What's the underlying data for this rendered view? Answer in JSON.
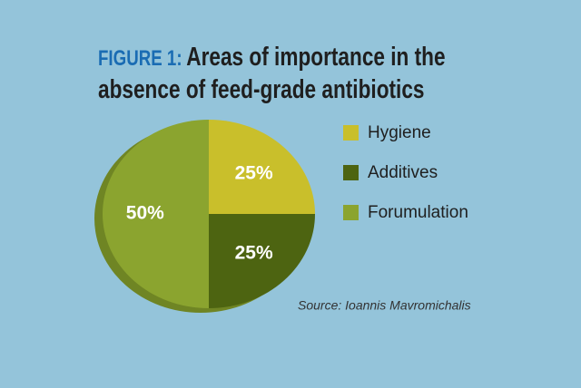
{
  "chart_data": {
    "type": "pie",
    "figure_label": "FIGURE 1:",
    "title": "Areas of importance in the absence of feed-grade antibiotics",
    "categories": [
      "Hygiene",
      "Additives",
      "Forumulation"
    ],
    "values": [
      25,
      25,
      50
    ],
    "value_labels": [
      "25%",
      "25%",
      "50%"
    ],
    "colors": [
      "#c9bf2b",
      "#4d6411",
      "#8ba42f"
    ],
    "source": "Source: Ioannis Mavromichalis"
  }
}
